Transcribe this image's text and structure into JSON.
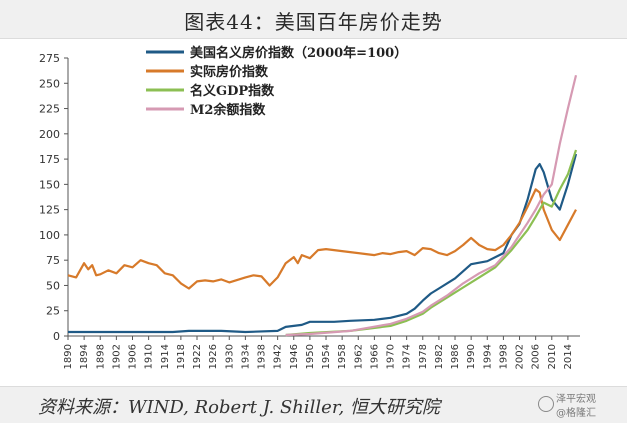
{
  "title": "图表44：美国百年房价走势",
  "source": "资料来源：WIND, Robert J. Shiller, 恒大研究院",
  "watermark": {
    "line1": "泽平宏观",
    "line2": "@格隆汇"
  },
  "chart_data": {
    "type": "line",
    "ylim": [
      0,
      275
    ],
    "xlim": [
      1890,
      2017
    ],
    "yticks": [
      0,
      25,
      50,
      75,
      100,
      125,
      150,
      175,
      200,
      225,
      250,
      275
    ],
    "xticks": [
      1890,
      1894,
      1898,
      1902,
      1906,
      1910,
      1914,
      1918,
      1922,
      1926,
      1930,
      1934,
      1938,
      1942,
      1946,
      1950,
      1954,
      1958,
      1962,
      1966,
      1970,
      1974,
      1978,
      1982,
      1986,
      1990,
      1994,
      1998,
      2002,
      2006,
      2010,
      2014
    ],
    "grid": false,
    "legend": "top-left",
    "series": [
      {
        "name": "美国名义房价指数（2000年=100）",
        "color": "#1f5a86",
        "x": [
          1890,
          1900,
          1910,
          1916,
          1920,
          1928,
          1934,
          1942,
          1944,
          1948,
          1950,
          1956,
          1960,
          1966,
          1970,
          1974,
          1976,
          1978,
          1980,
          1982,
          1986,
          1990,
          1994,
          1998,
          2000,
          2002,
          2004,
          2006,
          2007,
          2008,
          2010,
          2012,
          2014,
          2016
        ],
        "y": [
          4,
          4,
          4,
          4,
          5,
          5,
          4,
          5,
          9,
          11,
          14,
          14,
          15,
          16,
          18,
          22,
          27,
          35,
          42,
          47,
          57,
          71,
          74,
          82,
          100,
          111,
          135,
          165,
          170,
          162,
          135,
          125,
          150,
          180
        ]
      },
      {
        "name": "实际房价指数",
        "color": "#d77a2a",
        "x": [
          1890,
          1892,
          1894,
          1895,
          1896,
          1897,
          1898,
          1900,
          1902,
          1904,
          1906,
          1908,
          1910,
          1912,
          1914,
          1916,
          1918,
          1920,
          1922,
          1924,
          1926,
          1928,
          1930,
          1934,
          1936,
          1938,
          1940,
          1942,
          1944,
          1946,
          1947,
          1948,
          1950,
          1952,
          1954,
          1956,
          1958,
          1960,
          1964,
          1966,
          1968,
          1970,
          1972,
          1974,
          1976,
          1978,
          1980,
          1982,
          1984,
          1986,
          1988,
          1990,
          1992,
          1994,
          1996,
          1998,
          2000,
          2002,
          2004,
          2006,
          2007,
          2008,
          2010,
          2012,
          2014,
          2016
        ],
        "y": [
          60,
          58,
          72,
          66,
          70,
          60,
          61,
          65,
          62,
          70,
          68,
          75,
          72,
          70,
          62,
          60,
          52,
          47,
          54,
          55,
          54,
          56,
          53,
          58,
          60,
          59,
          50,
          58,
          72,
          78,
          72,
          80,
          77,
          85,
          86,
          85,
          84,
          83,
          81,
          80,
          82,
          81,
          83,
          84,
          80,
          87,
          86,
          82,
          80,
          84,
          90,
          97,
          90,
          86,
          85,
          90,
          100,
          112,
          128,
          145,
          142,
          125,
          105,
          95,
          110,
          125
        ]
      },
      {
        "name": "名义GDP指数",
        "color": "#8cbf53",
        "x": [
          1944,
          1950,
          1960,
          1970,
          1974,
          1978,
          1980,
          1984,
          1988,
          1992,
          1996,
          2000,
          2004,
          2006,
          2008,
          2010,
          2012,
          2014,
          2016
        ],
        "y": [
          1,
          3,
          5,
          10,
          15,
          22,
          28,
          38,
          48,
          58,
          68,
          85,
          105,
          118,
          132,
          128,
          145,
          160,
          184
        ]
      },
      {
        "name": "M2余额指数",
        "color": "#d69ab3",
        "x": [
          1944,
          1950,
          1960,
          1970,
          1974,
          1978,
          1980,
          1984,
          1988,
          1992,
          1996,
          2000,
          2004,
          2006,
          2008,
          2010,
          2012,
          2014,
          2016
        ],
        "y": [
          1,
          2,
          5,
          12,
          17,
          24,
          30,
          40,
          52,
          62,
          70,
          88,
          112,
          125,
          140,
          150,
          190,
          225,
          258
        ]
      }
    ]
  }
}
